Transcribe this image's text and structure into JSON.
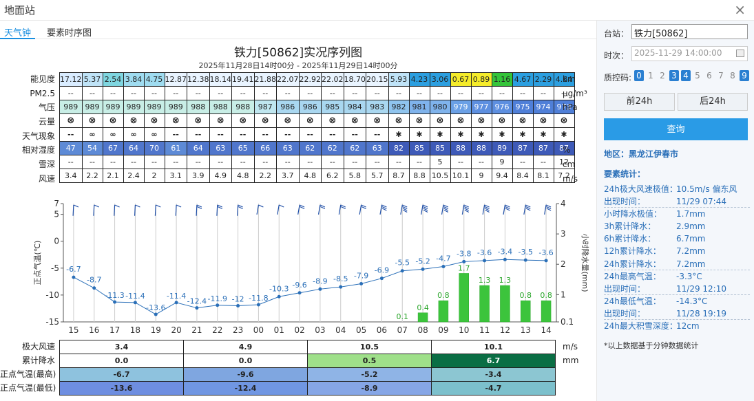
{
  "window": {
    "title": "地面站",
    "close": "×"
  },
  "tabs": [
    {
      "label": "天气钟"
    },
    {
      "label": "要素时序图"
    }
  ],
  "chart": {
    "title": "铁力[50862]实况序列图",
    "subtitle": "2025年11月28日14时00分 - 2025年11月29日14时00分"
  },
  "table": {
    "rows": [
      {
        "label": "能见度",
        "unit": "km",
        "values": [
          "17.12",
          "5.37",
          "2.54",
          "3.84",
          "4.75",
          "12.87",
          "12.38",
          "18.14",
          "19.41",
          "21.88",
          "22.07",
          "22.92",
          "22.02",
          "18.70",
          "20.15",
          "5.93",
          "4.23",
          "3.06",
          "0.67",
          "0.89",
          "1.16",
          "4.67",
          "2.29",
          "4.64"
        ],
        "colors": [
          "#d9ecff",
          "#bfe3f7",
          "#7fd6e0",
          "#9fdcf0",
          "#9fdcf0",
          "#e9f4ff",
          "#e9f4ff",
          "#e9f4ff",
          "#e9f4ff",
          "#e9f4ff",
          "#e9f4ff",
          "#e9f4ff",
          "#e9f4ff",
          "#e9f4ff",
          "#e9f4ff",
          "#bfe3f7",
          "#2c9fe0",
          "#2c9fe0",
          "#f5ec2a",
          "#f5ec2a",
          "#35c43a",
          "#2c9fe0",
          "#2c9fe0",
          "#2c9fe0"
        ]
      },
      {
        "label": "PM2.5",
        "unit": "μg/m³",
        "values": [
          "--",
          "--",
          "--",
          "--",
          "--",
          "--",
          "--",
          "--",
          "--",
          "--",
          "--",
          "--",
          "--",
          "--",
          "--",
          "--",
          "--",
          "--",
          "--",
          "--",
          "--",
          "--",
          "--",
          "--"
        ]
      },
      {
        "label": "气压",
        "unit": "hPa",
        "values": [
          "989",
          "989",
          "989",
          "989",
          "989",
          "989",
          "988",
          "988",
          "988",
          "987",
          "986",
          "986",
          "985",
          "984",
          "983",
          "982",
          "981",
          "980",
          "979",
          "977",
          "976",
          "975",
          "974",
          "973"
        ],
        "colors": [
          "#c8eee6",
          "#c8eee6",
          "#c8eee6",
          "#c8eee6",
          "#c8eee6",
          "#c8eee6",
          "#c8eee6",
          "#c8eee6",
          "#c8eee6",
          "#bfe6ef",
          "#a9d7f0",
          "#a9d7f0",
          "#a9d7f0",
          "#a9d7f0",
          "#a9d7f0",
          "#8fc4ee",
          "#7fb3ec",
          "#7fb3ec",
          "#6aa0e6",
          "#5d8fe0",
          "#5d8fe0",
          "#4f7fd8",
          "#4f7fd8",
          "#4f7fd8"
        ]
      },
      {
        "label": "云量",
        "unit": "",
        "values": [
          "⊗",
          "⊗",
          "⊗",
          "⊗",
          "⊗",
          "⊗",
          "⊗",
          "⊗",
          "⊗",
          "⊗",
          "⊗",
          "⊗",
          "⊗",
          "⊗",
          "⊗",
          "⊗",
          "⊗",
          "⊗",
          "⊗",
          "⊗",
          "⊗",
          "⊗",
          "⊗",
          "⊗"
        ]
      },
      {
        "label": "天气现象",
        "unit": "",
        "values": [
          "--",
          "∞",
          "∞",
          "∞",
          "∞",
          "--",
          "--",
          "--",
          "--",
          "--",
          "--",
          "--",
          "--",
          "--",
          "--",
          "✱",
          "✱",
          "✱",
          "✱",
          "✱",
          "✱",
          "✱",
          "✱",
          "✱"
        ]
      },
      {
        "label": "相对湿度",
        "unit": "%",
        "values": [
          "47",
          "54",
          "67",
          "64",
          "70",
          "61",
          "64",
          "63",
          "65",
          "66",
          "63",
          "62",
          "62",
          "62",
          "63",
          "82",
          "85",
          "85",
          "88",
          "88",
          "89",
          "87",
          "87",
          "87"
        ],
        "colors": [
          "#5d8ad6",
          "#5d8ad6",
          "#5076cc",
          "#5076cc",
          "#5076cc",
          "#5d8ad6",
          "#5076cc",
          "#5076cc",
          "#5076cc",
          "#5076cc",
          "#5076cc",
          "#5076cc",
          "#5076cc",
          "#5076cc",
          "#5076cc",
          "#3e5ab8",
          "#3e5ab8",
          "#3e5ab8",
          "#3e5ab8",
          "#3e5ab8",
          "#3e5ab8",
          "#3e5ab8",
          "#3e5ab8",
          "#3e5ab8"
        ]
      },
      {
        "label": "雪深",
        "unit": "cm",
        "values": [
          "--",
          "--",
          "--",
          "--",
          "--",
          "--",
          "--",
          "--",
          "--",
          "--",
          "--",
          "--",
          "--",
          "--",
          "--",
          "--",
          "--",
          "5",
          "--",
          "--",
          "9",
          "--",
          "--",
          "12"
        ]
      },
      {
        "label": "风速",
        "unit": "m/s",
        "values": [
          "3.4",
          "2.2",
          "2.1",
          "2.4",
          "2",
          "3.1",
          "3.9",
          "4.9",
          "4.8",
          "2.2",
          "3.7",
          "4.8",
          "6.2",
          "5.8",
          "5.7",
          "8.7",
          "8.8",
          "10.5",
          "10.1",
          "9",
          "9.4",
          "8.4",
          "8.1",
          "7.2"
        ]
      }
    ]
  },
  "chart_data": {
    "type": "line",
    "x": [
      "15",
      "16",
      "17",
      "18",
      "19",
      "20",
      "21",
      "22",
      "23",
      "00",
      "01",
      "02",
      "03",
      "04",
      "05",
      "06",
      "07",
      "08",
      "09",
      "10",
      "11",
      "12",
      "13",
      "14"
    ],
    "series": [
      {
        "values": [
          -6.7,
          -8.7,
          -11.3,
          -11.4,
          -13.6,
          -11.4,
          -12.4,
          -11.9,
          -12,
          -11.8,
          -10.3,
          -9.6,
          -8.9,
          -8.5,
          -7.9,
          -6.9,
          -5.5,
          -5.2,
          -4.7,
          -3.8,
          -3.6,
          -3.4,
          -3.5,
          -3.6
        ],
        "color": "#2a6fb8"
      },
      {
        "type": "bar",
        "values": [
          null,
          null,
          null,
          null,
          null,
          null,
          null,
          null,
          null,
          null,
          null,
          null,
          null,
          null,
          null,
          null,
          0.1,
          0.4,
          0.8,
          1.7,
          1.3,
          1.3,
          0.8,
          0.8
        ],
        "color": "#3cc43c"
      }
    ],
    "ylabel": "正点气温(℃)",
    "y2label": "小时降水量(mm)",
    "ylim": [
      -15,
      7
    ],
    "yticks": [
      -15,
      -10,
      -5,
      0,
      5,
      7
    ],
    "y2lim": [
      0.1,
      4
    ],
    "y2ticks": [
      0.1,
      1,
      2,
      3,
      4
    ],
    "wind_speed": [
      3.4,
      2.2,
      2.1,
      2.4,
      2,
      3.1,
      3.9,
      4.9,
      4.8,
      2.2,
      3.7,
      4.8,
      6.2,
      5.8,
      5.7,
      8.7,
      8.8,
      10.5,
      10.1,
      9,
      9.4,
      8.4,
      8.1,
      7.2
    ]
  },
  "summary": {
    "rows": [
      {
        "label": "极大风速",
        "unit": "m/s",
        "cells": [
          "3.4",
          "4.9",
          "10.5",
          "10.1"
        ],
        "colors": [
          "#ffffff",
          "#ffffff",
          "#ffffff",
          "#ffffff"
        ]
      },
      {
        "label": "累计降水",
        "unit": "mm",
        "cells": [
          "0.0",
          "0.0",
          "0.5",
          "6.7"
        ],
        "colors": [
          "#ffffff",
          "#ffffff",
          "#9fe08a",
          "#0a6e44"
        ]
      },
      {
        "label": "正点气温(最高)",
        "unit": "",
        "cells": [
          "-6.7",
          "-9.6",
          "-5.2",
          "-3.4"
        ],
        "colors": [
          "#8ec2de",
          "#7fa6e0",
          "#8fb4e6",
          "#8cc6d2"
        ]
      },
      {
        "label": "正点气温(最低)",
        "unit": "",
        "cells": [
          "-13.6",
          "-12.4",
          "-8.9",
          "-4.7"
        ],
        "colors": [
          "#6e8ee0",
          "#7096e2",
          "#86a6e6",
          "#7cc0cc"
        ]
      }
    ]
  },
  "sidebar": {
    "station_label": "台站：",
    "station_value": "铁力[50862]",
    "time_label": "时次：",
    "time_value": "2025-11-29 14:00:00",
    "qc_label": "质控码:",
    "qc_codes": [
      "0",
      "1",
      "2",
      "3",
      "4",
      "5",
      "6",
      "7",
      "8",
      "9"
    ],
    "qc_on": [
      "0",
      "3",
      "4",
      "9"
    ],
    "prev_button": "前24h",
    "next_button": "后24h",
    "query_button": "查询",
    "region": "地区：黑龙江伊春市",
    "stats_title": "要素统计：",
    "stats": [
      {
        "k": "24h极大风速极值：",
        "v": "10.5m/s 偏东风"
      },
      {
        "k": "出现时间：",
        "v": "11/29 07:44",
        "sep": true
      },
      {
        "k": "小时降水极值：",
        "v": "1.7mm"
      },
      {
        "k": "3h累计降水：",
        "v": "2.9mm"
      },
      {
        "k": "6h累计降水：",
        "v": "6.7mm"
      },
      {
        "k": "12h累计降水：",
        "v": "7.2mm"
      },
      {
        "k": "24h累计降水：",
        "v": "7.2mm",
        "sep": true
      },
      {
        "k": "24h最高气温：",
        "v": "-3.3°C"
      },
      {
        "k": "出现时间：",
        "v": "11/29 12:10",
        "sep": true
      },
      {
        "k": "24h最低气温：",
        "v": "-14.3°C"
      },
      {
        "k": "出现时间：",
        "v": "11/28 19:19",
        "sep": true
      },
      {
        "k": "24h最大积雪深度：",
        "v": "12cm"
      }
    ],
    "note": "*以上数据基于分钟数据统计"
  }
}
